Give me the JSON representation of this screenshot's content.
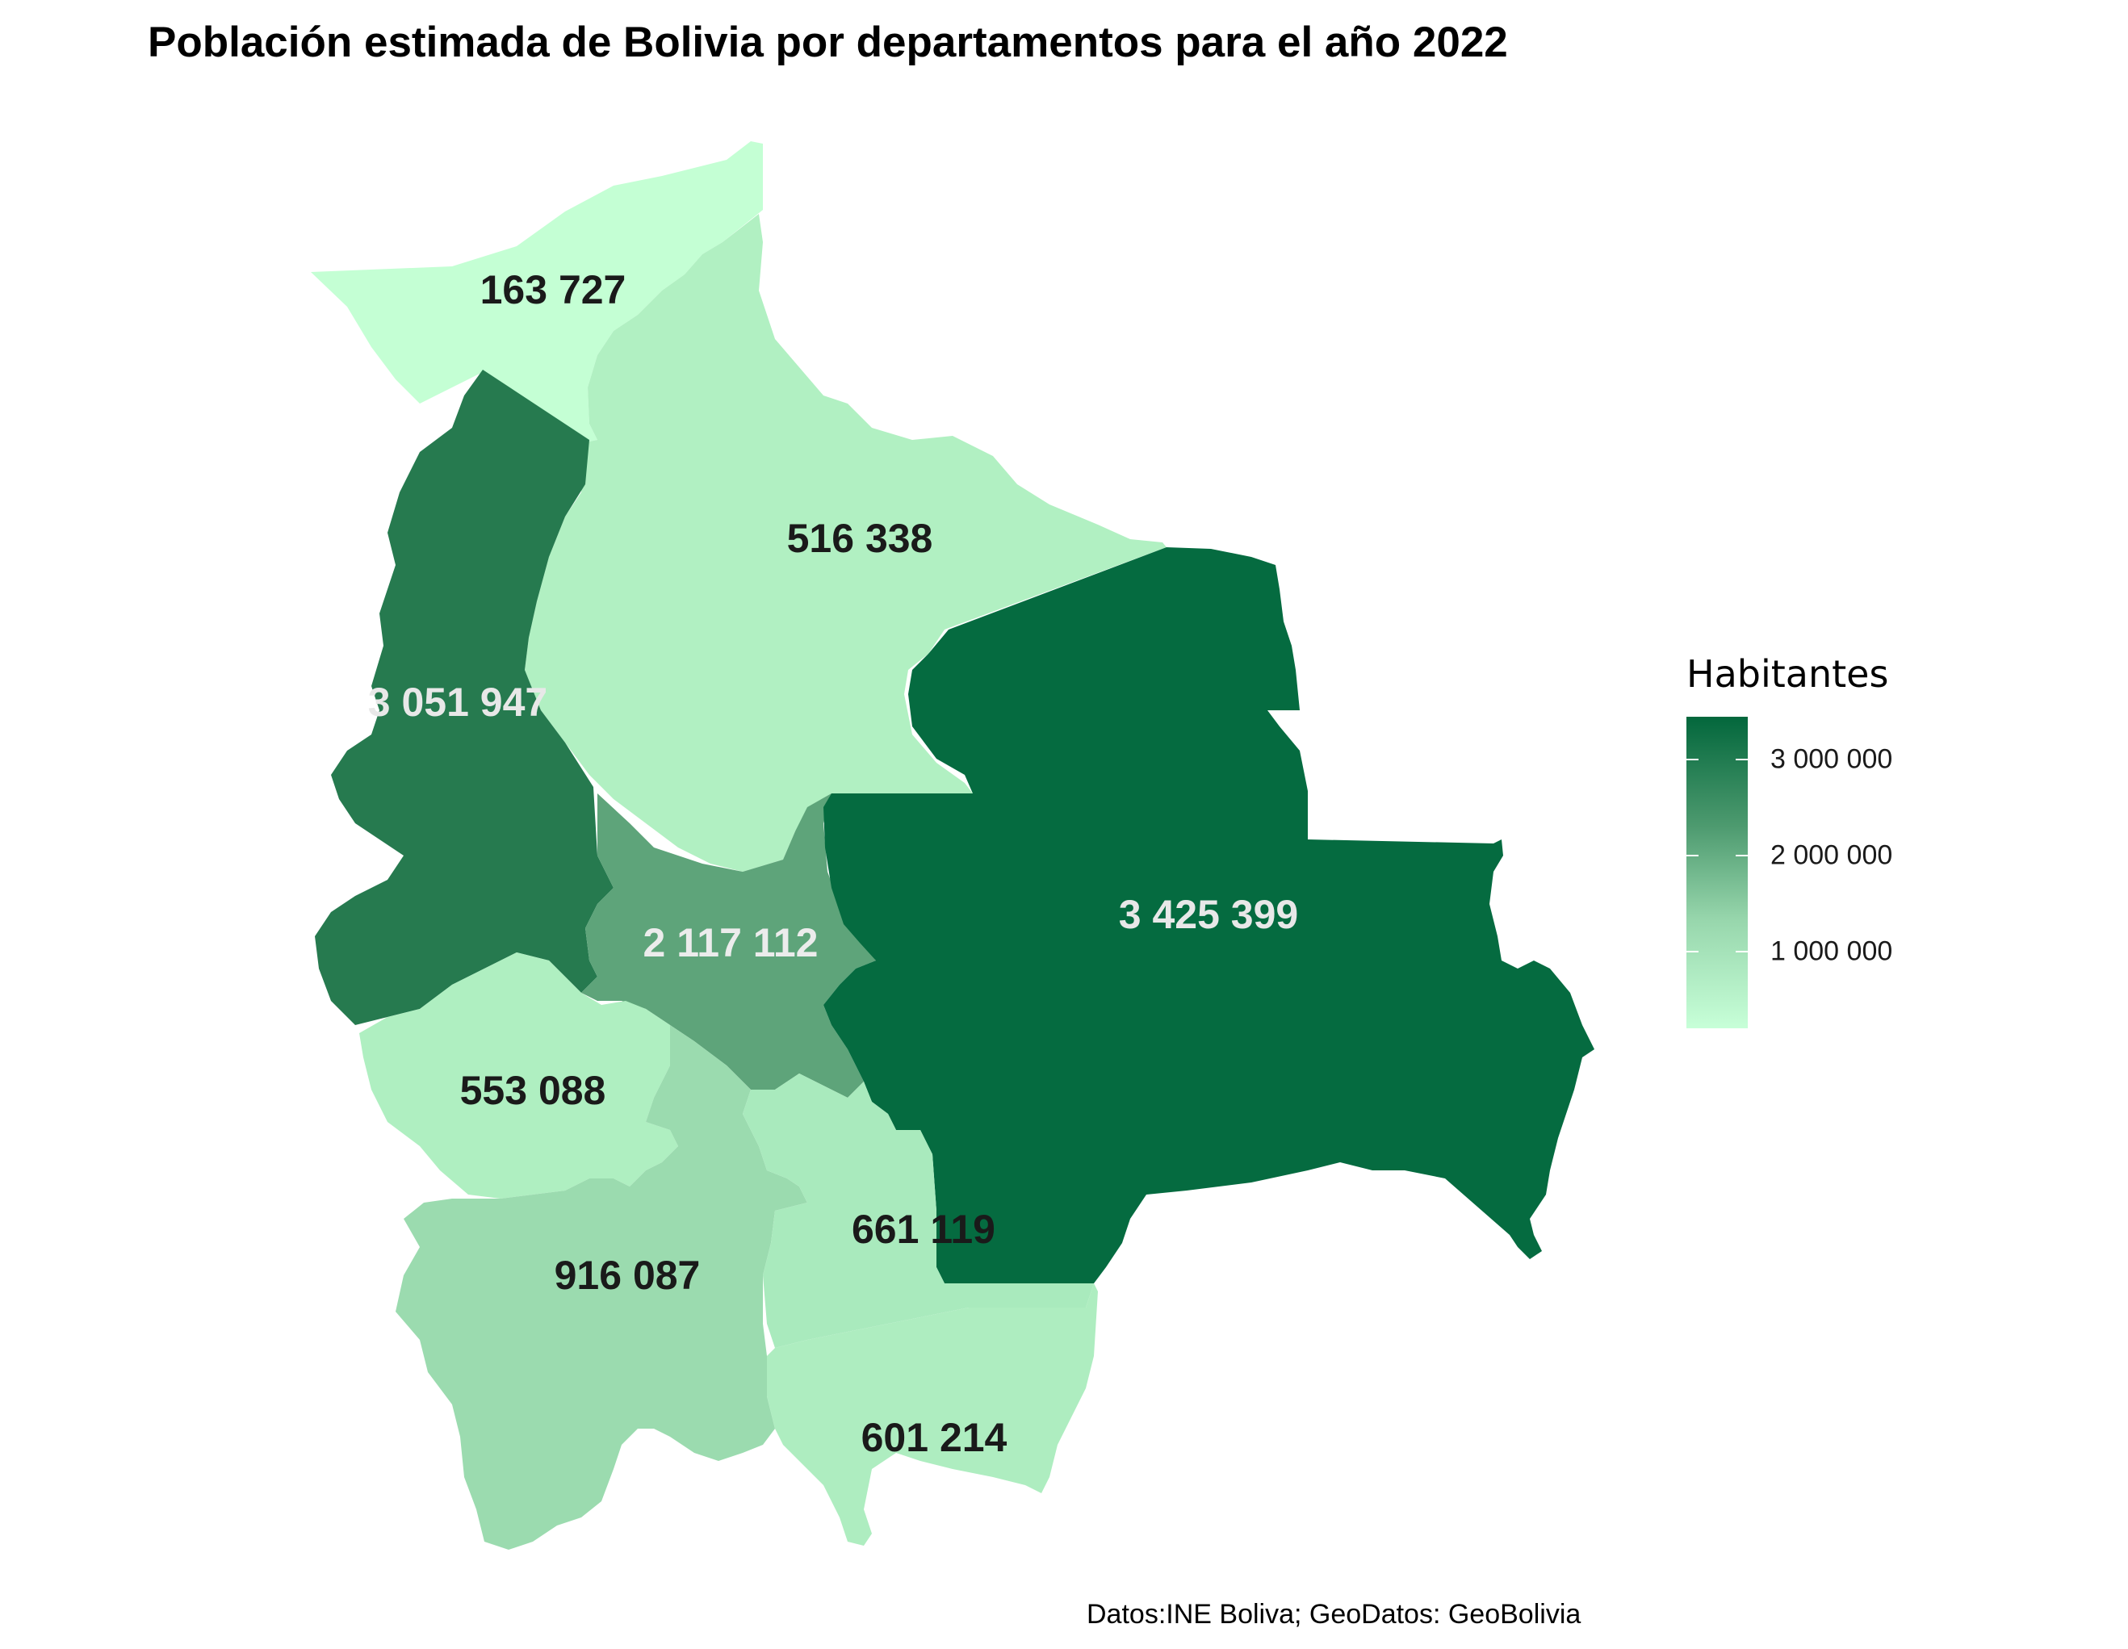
{
  "title": "Población estimada de Bolivia por departamentos para el año 2022",
  "caption": "Datos:INE Boliva; GeoDatos: GeoBolivia",
  "legend": {
    "title": "Habitantes",
    "labels": [
      "3 000 000",
      "2 000 000",
      "1 000 000"
    ],
    "colors": {
      "low": "#c7ffd8",
      "high": "#03673c"
    }
  },
  "chart_data": {
    "type": "choropleth",
    "title": "Población estimada de Bolivia por departamentos para el año 2022",
    "value_range": [
      163727,
      3425399
    ],
    "legend_ticks": [
      1000000,
      2000000,
      3000000
    ],
    "regions": [
      {
        "label": "163 727",
        "value": 163727,
        "color": "#c4ffd4",
        "text_color": "#1a1a1a"
      },
      {
        "label": "516 338",
        "value": 516338,
        "color": "#b1f0c2",
        "text_color": "#1a1a1a"
      },
      {
        "label": "3 051 947",
        "value": 3051947,
        "color": "#267a4f",
        "text_color": "#e8e8e8"
      },
      {
        "label": "2 117 112",
        "value": 2117112,
        "color": "#5ea47a",
        "text_color": "#ececec"
      },
      {
        "label": "3 425 399",
        "value": 3425399,
        "color": "#056b40",
        "text_color": "#e8e8e8"
      },
      {
        "label": "553 088",
        "value": 553088,
        "color": "#afefc1",
        "text_color": "#1a1a1a"
      },
      {
        "label": "916 087",
        "value": 916087,
        "color": "#9bdbaf",
        "text_color": "#1a1a1a"
      },
      {
        "label": "661 119",
        "value": 661119,
        "color": "#a9eabd",
        "text_color": "#1a1a1a"
      },
      {
        "label": "601 214",
        "value": 601214,
        "color": "#aeedc0",
        "text_color": "#1a1a1a"
      }
    ]
  }
}
